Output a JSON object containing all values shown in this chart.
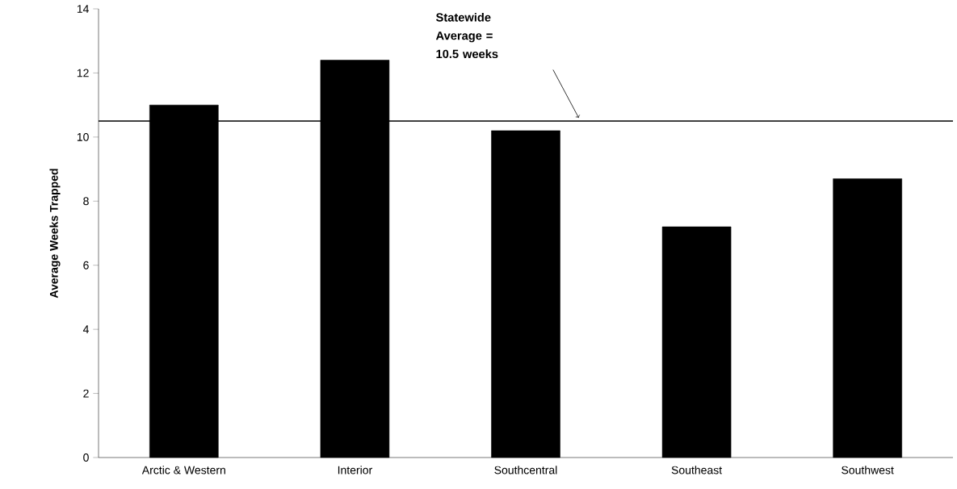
{
  "chart_data": {
    "type": "bar",
    "ylabel": "Average Weeks Trapped",
    "categories": [
      "Arctic & Western",
      "Interior",
      "Southcentral",
      "Southeast",
      "Southwest"
    ],
    "values": [
      11.0,
      12.4,
      10.2,
      7.2,
      8.7
    ],
    "color": "#000000",
    "ylim": [
      0,
      14
    ],
    "yticks": [
      0,
      2,
      4,
      6,
      8,
      10,
      12,
      14
    ],
    "grid": false,
    "ref_lines": [
      {
        "axis": "y",
        "value": 10.5,
        "label": "Statewide Average = 10.5 weeks",
        "color": "#000000"
      }
    ]
  }
}
